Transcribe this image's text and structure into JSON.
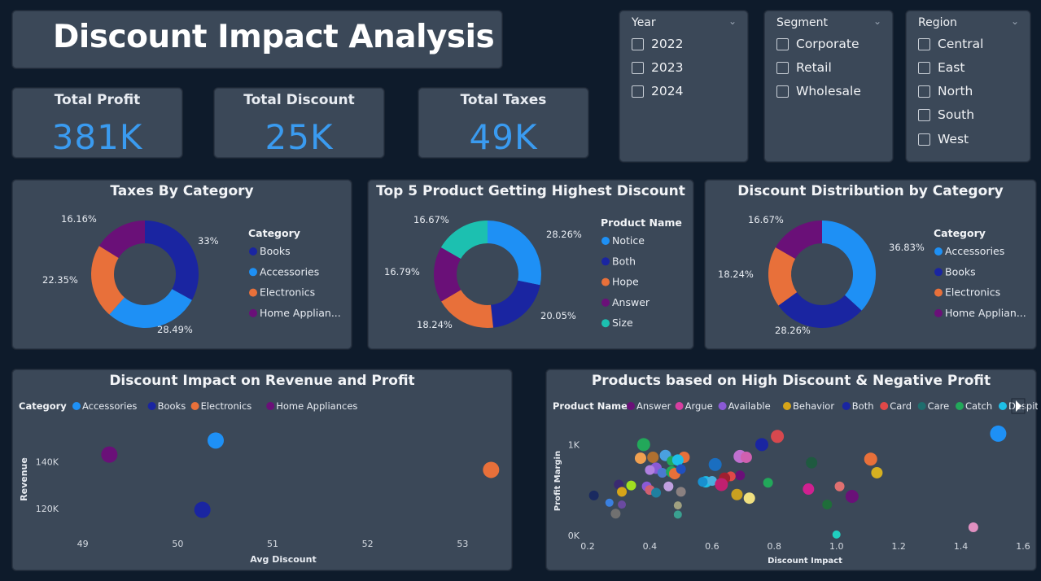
{
  "title": "Discount Impact Analysis",
  "colors": {
    "accent": "#3a9bf0",
    "panel": "#3b4858",
    "background": "#0e1b2b"
  },
  "kpis": [
    {
      "label": "Total Profit",
      "value": "381K"
    },
    {
      "label": "Total Discount",
      "value": "25K"
    },
    {
      "label": "Total Taxes",
      "value": "49K"
    }
  ],
  "slicers": {
    "year": {
      "title": "Year",
      "items": [
        "2022",
        "2023",
        "2024"
      ]
    },
    "segment": {
      "title": "Segment",
      "items": [
        "Corporate",
        "Retail",
        "Wholesale"
      ]
    },
    "region": {
      "title": "Region",
      "items": [
        "Central",
        "East",
        "North",
        "South",
        "West"
      ]
    }
  },
  "chart_data": [
    {
      "type": "pie",
      "variant": "donut",
      "title": "Taxes By Category",
      "legend_title": "Category",
      "slices": [
        {
          "label": "Books",
          "value": 33,
          "display": "33%",
          "color": "#1a25a1"
        },
        {
          "label": "Accessories",
          "value": 28.49,
          "display": "28.49%",
          "color": "#1e90f5"
        },
        {
          "label": "Electronics",
          "value": 22.35,
          "display": "22.35%",
          "color": "#e8703a"
        },
        {
          "label": "Home Applian...",
          "value": 16.16,
          "display": "16.16%",
          "color": "#6a1078"
        }
      ]
    },
    {
      "type": "pie",
      "variant": "donut",
      "title": "Top 5 Product Getting Highest Discount",
      "legend_title": "Product Name",
      "slices": [
        {
          "label": "Notice",
          "value": 28.26,
          "display": "28.26%",
          "color": "#1e90f5"
        },
        {
          "label": "Both",
          "value": 20.05,
          "display": "20.05%",
          "color": "#1a25a1"
        },
        {
          "label": "Hope",
          "value": 18.24,
          "display": "18.24%",
          "color": "#e8703a"
        },
        {
          "label": "Answer",
          "value": 16.79,
          "display": "16.79%",
          "color": "#6a1078"
        },
        {
          "label": "Size",
          "value": 16.67,
          "display": "16.67%",
          "color": "#1cc0b0"
        }
      ]
    },
    {
      "type": "pie",
      "variant": "donut",
      "title": "Discount Distribution by Category",
      "legend_title": "Category",
      "slices": [
        {
          "label": "Accessories",
          "value": 36.83,
          "display": "36.83%",
          "color": "#1e90f5"
        },
        {
          "label": "Books",
          "value": 28.26,
          "display": "28.26%",
          "color": "#1a25a1"
        },
        {
          "label": "Electronics",
          "value": 18.24,
          "display": "18.24%",
          "color": "#e8703a"
        },
        {
          "label": "Home Applian...",
          "value": 16.67,
          "display": "16.67%",
          "color": "#6a1078"
        }
      ]
    },
    {
      "type": "scatter",
      "title": "Discount Impact on Revenue and Profit",
      "legend_title": "Category",
      "xlabel": "Avg Discount",
      "ylabel": "Revenue",
      "xlim": [
        48.6,
        53.4
      ],
      "ylim": [
        110000,
        155000
      ],
      "xticks": [
        "49",
        "50",
        "51",
        "52",
        "53"
      ],
      "xtick_values": [
        49,
        50,
        51,
        52,
        53
      ],
      "yticks": [
        "120K",
        "140K"
      ],
      "ytick_values": [
        120000,
        140000
      ],
      "series": [
        {
          "name": "Accessories",
          "color": "#1e90f5",
          "points": [
            {
              "x": 50.4,
              "y": 149000
            }
          ]
        },
        {
          "name": "Books",
          "color": "#1a25a1",
          "points": [
            {
              "x": 50.26,
              "y": 119500
            }
          ]
        },
        {
          "name": "Electronics",
          "color": "#e8703a",
          "points": [
            {
              "x": 53.3,
              "y": 136500
            }
          ]
        },
        {
          "name": "Home Appliances",
          "color": "#6a1078",
          "points": [
            {
              "x": 49.28,
              "y": 143000
            }
          ]
        }
      ]
    },
    {
      "type": "scatter",
      "title": "Products based on High Discount & Negative Profit",
      "legend_title": "Product Name",
      "xlabel": "Discount Impact",
      "ylabel": "Profit Margin",
      "xlim": [
        0.2,
        1.6
      ],
      "ylim": [
        0,
        1200
      ],
      "xticks": [
        "0.2",
        "0.4",
        "0.6",
        "0.8",
        "1.0",
        "1.2",
        "1.4",
        "1.6"
      ],
      "xtick_values": [
        0.2,
        0.4,
        0.6,
        0.8,
        1.0,
        1.2,
        1.4,
        1.6
      ],
      "yticks": [
        "0K",
        "1K"
      ],
      "ytick_values": [
        0,
        1000
      ],
      "legend": [
        {
          "name": "Answer",
          "color": "#6a1078"
        },
        {
          "name": "Argue",
          "color": "#d63fa0"
        },
        {
          "name": "Available",
          "color": "#8a5ad6"
        },
        {
          "name": "Behavior",
          "color": "#d6a418"
        },
        {
          "name": "Both",
          "color": "#1a25a1"
        },
        {
          "name": "Card",
          "color": "#e04848"
        },
        {
          "name": "Care",
          "color": "#1f6d6d"
        },
        {
          "name": "Catch",
          "color": "#22a85a"
        },
        {
          "name": "Despite",
          "color": "#1ebfe8"
        }
      ],
      "points": [
        {
          "x": 1.52,
          "y": 1120,
          "c": "#1e90f5",
          "r": 10
        },
        {
          "x": 0.81,
          "y": 1090,
          "c": "#d6484e",
          "r": 8
        },
        {
          "x": 0.76,
          "y": 1000,
          "c": "#1a25a1",
          "r": 8
        },
        {
          "x": 0.38,
          "y": 1000,
          "c": "#22a85a",
          "r": 8
        },
        {
          "x": 0.45,
          "y": 880,
          "c": "#4aa0e0",
          "r": 7
        },
        {
          "x": 0.51,
          "y": 860,
          "c": "#e8703a",
          "r": 7
        },
        {
          "x": 0.37,
          "y": 850,
          "c": "#f0a050",
          "r": 7
        },
        {
          "x": 0.41,
          "y": 860,
          "c": "#b07030",
          "r": 7
        },
        {
          "x": 0.47,
          "y": 820,
          "c": "#22a85a",
          "r": 6
        },
        {
          "x": 0.49,
          "y": 830,
          "c": "#1ebfe8",
          "r": 7
        },
        {
          "x": 0.69,
          "y": 870,
          "c": "#c070d0",
          "r": 8
        },
        {
          "x": 0.71,
          "y": 860,
          "c": "#d060b0",
          "r": 7
        },
        {
          "x": 0.61,
          "y": 780,
          "c": "#1a6ec0",
          "r": 8
        },
        {
          "x": 0.42,
          "y": 740,
          "c": "#8a5ad6",
          "r": 7
        },
        {
          "x": 0.4,
          "y": 720,
          "c": "#b080e0",
          "r": 6
        },
        {
          "x": 0.44,
          "y": 690,
          "c": "#4a7ad0",
          "r": 6
        },
        {
          "x": 0.47,
          "y": 700,
          "c": "#22a85a",
          "r": 7
        },
        {
          "x": 0.48,
          "y": 680,
          "c": "#e8703a",
          "r": 7
        },
        {
          "x": 0.5,
          "y": 730,
          "c": "#2050c0",
          "r": 6
        },
        {
          "x": 0.92,
          "y": 800,
          "c": "#1f5a40",
          "r": 7
        },
        {
          "x": 1.11,
          "y": 840,
          "c": "#e8703a",
          "r": 8
        },
        {
          "x": 1.13,
          "y": 690,
          "c": "#d6b020",
          "r": 7
        },
        {
          "x": 0.69,
          "y": 660,
          "c": "#6a1078",
          "r": 6
        },
        {
          "x": 0.66,
          "y": 650,
          "c": "#e04848",
          "r": 6
        },
        {
          "x": 0.64,
          "y": 630,
          "c": "#a02030",
          "r": 7
        },
        {
          "x": 0.58,
          "y": 590,
          "c": "#1ebfe8",
          "r": 7
        },
        {
          "x": 0.6,
          "y": 600,
          "c": "#4ab0e0",
          "r": 6
        },
        {
          "x": 0.57,
          "y": 590,
          "c": "#1890d0",
          "r": 6
        },
        {
          "x": 0.63,
          "y": 560,
          "c": "#c02070",
          "r": 8
        },
        {
          "x": 0.78,
          "y": 580,
          "c": "#22a85a",
          "r": 6
        },
        {
          "x": 0.3,
          "y": 560,
          "c": "#3a2a70",
          "r": 6
        },
        {
          "x": 0.34,
          "y": 550,
          "c": "#a0e020",
          "r": 6
        },
        {
          "x": 0.39,
          "y": 540,
          "c": "#8a5ad6",
          "r": 6
        },
        {
          "x": 0.46,
          "y": 540,
          "c": "#c0a0e0",
          "r": 6
        },
        {
          "x": 0.31,
          "y": 480,
          "c": "#d6a418",
          "r": 6
        },
        {
          "x": 0.4,
          "y": 500,
          "c": "#d06070",
          "r": 6
        },
        {
          "x": 0.42,
          "y": 470,
          "c": "#2080a0",
          "r": 6
        },
        {
          "x": 0.5,
          "y": 480,
          "c": "#8a8080",
          "r": 6
        },
        {
          "x": 0.91,
          "y": 510,
          "c": "#d02090",
          "r": 7
        },
        {
          "x": 1.01,
          "y": 540,
          "c": "#e07070",
          "r": 6
        },
        {
          "x": 0.68,
          "y": 450,
          "c": "#c8a020",
          "r": 7
        },
        {
          "x": 0.72,
          "y": 410,
          "c": "#f0e080",
          "r": 7
        },
        {
          "x": 0.22,
          "y": 440,
          "c": "#1a2a60",
          "r": 6
        },
        {
          "x": 0.27,
          "y": 360,
          "c": "#3a80e0",
          "r": 5
        },
        {
          "x": 0.31,
          "y": 340,
          "c": "#6a4aa0",
          "r": 5
        },
        {
          "x": 0.49,
          "y": 330,
          "c": "#a0a080",
          "r": 5
        },
        {
          "x": 1.05,
          "y": 430,
          "c": "#6a1078",
          "r": 8
        },
        {
          "x": 0.97,
          "y": 340,
          "c": "#1f6d3a",
          "r": 6
        },
        {
          "x": 0.29,
          "y": 240,
          "c": "#707070",
          "r": 6
        },
        {
          "x": 0.49,
          "y": 230,
          "c": "#3aa090",
          "r": 5
        },
        {
          "x": 1.44,
          "y": 90,
          "c": "#e090c0",
          "r": 6
        },
        {
          "x": 1.0,
          "y": 10,
          "c": "#20d0c0",
          "r": 5
        }
      ]
    }
  ]
}
